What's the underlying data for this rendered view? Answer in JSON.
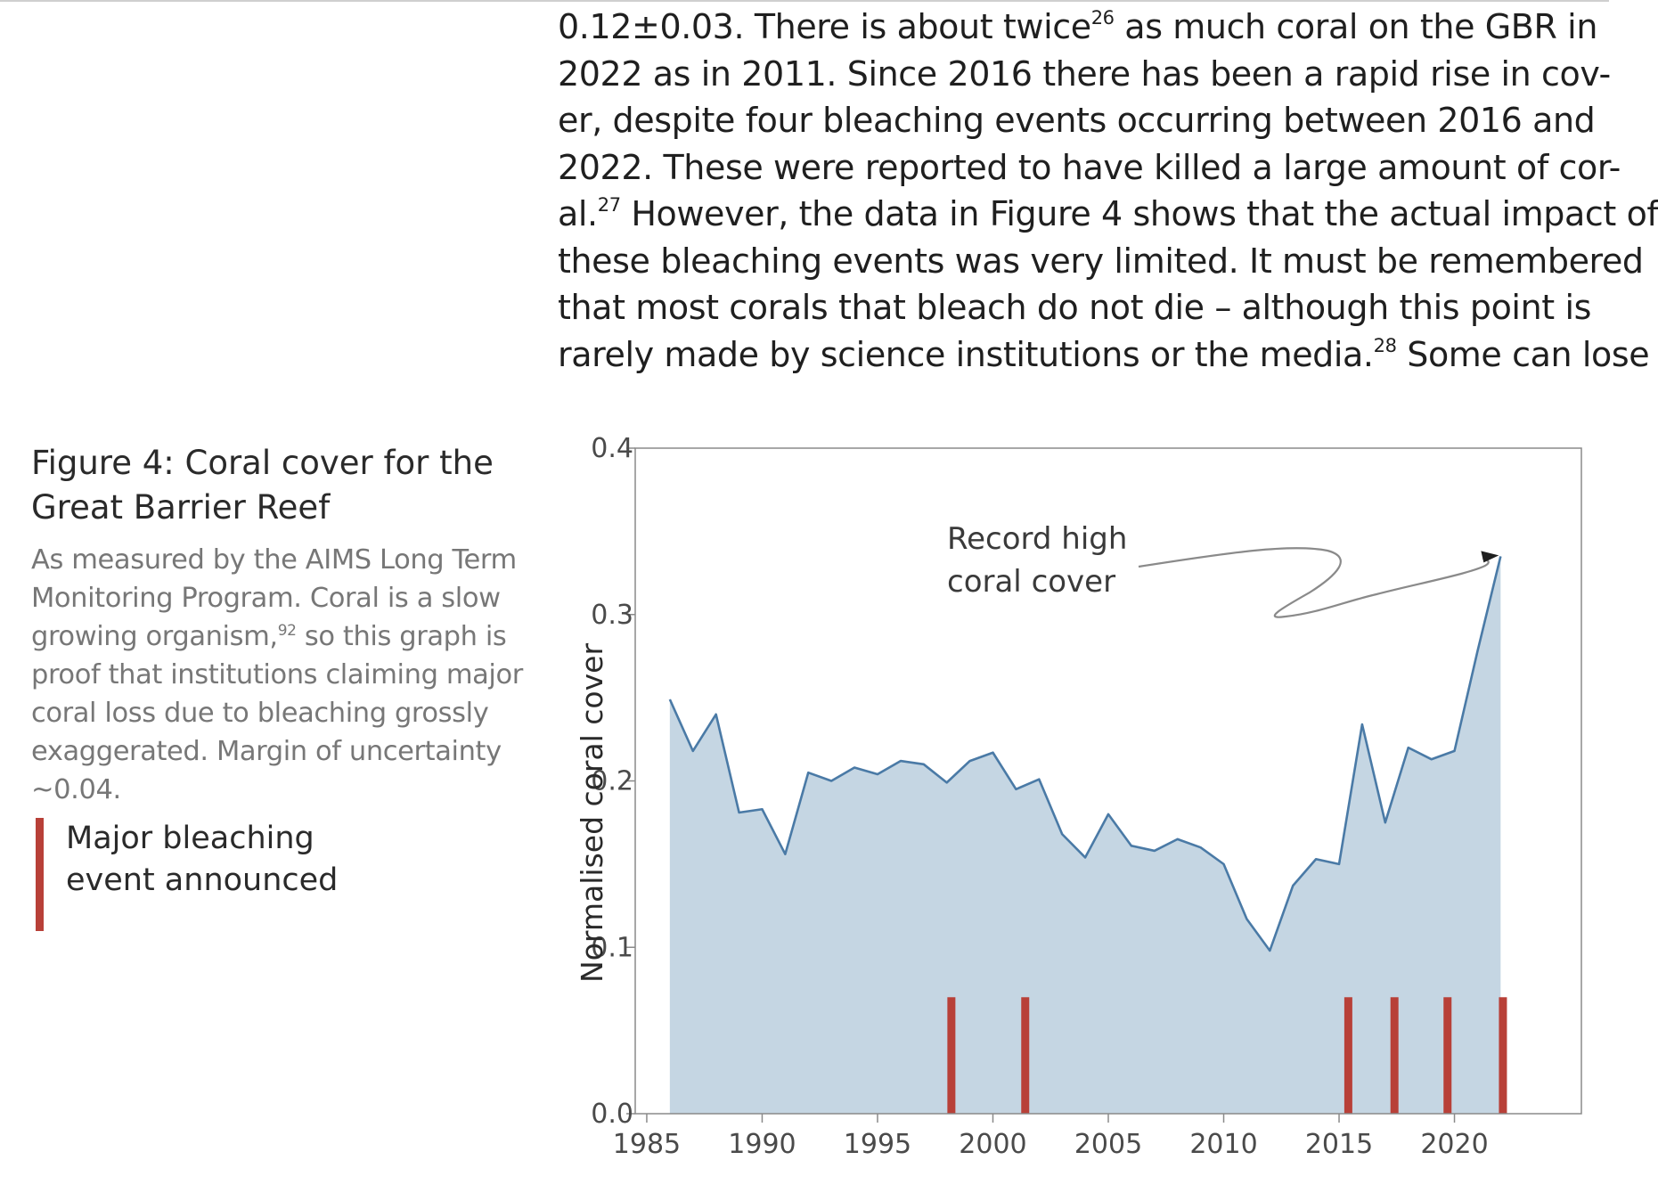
{
  "body_text": {
    "lines": [
      [
        {
          "t": "0.12±0.03. There is about twice"
        },
        {
          "sup": "26"
        },
        {
          "t": " as much coral on the GBR in"
        }
      ],
      [
        {
          "t": "2022 as in 2011. Since 2016 there has been a rapid rise in cov-"
        }
      ],
      [
        {
          "t": "er, despite four bleaching events occurring between 2016 and"
        }
      ],
      [
        {
          "t": "2022. These were reported to have killed a large amount of cor-"
        }
      ],
      [
        {
          "t": "al."
        },
        {
          "sup": "27"
        },
        {
          "t": " However, the data in Figure 4 shows that the actual impact of"
        }
      ],
      [
        {
          "t": "these bleaching events was very limited. It must be remembered"
        }
      ],
      [
        {
          "t": "that most corals that bleach do not die – although this point is"
        }
      ],
      [
        {
          "t": "rarely made by science institutions or the media."
        },
        {
          "sup": "28"
        },
        {
          "t": " Some can lose"
        }
      ]
    ]
  },
  "figure": {
    "title_line1": "Figure 4: Coral cover for the",
    "title_line2": "Great Barrier Reef",
    "caption_lines": [
      [
        {
          "t": "As measured by the AIMS Long Term"
        }
      ],
      [
        {
          "t": "Monitoring Program. Coral is a slow"
        }
      ],
      [
        {
          "t": "growing organism,"
        },
        {
          "sup": "92"
        },
        {
          "t": " so this graph is"
        }
      ],
      [
        {
          "t": "proof that institutions claiming major"
        }
      ],
      [
        {
          "t": "coral loss due to bleaching grossly"
        }
      ],
      [
        {
          "t": "exaggerated. Margin of uncertainty"
        }
      ],
      [
        {
          "t": "~0.04."
        }
      ]
    ],
    "legend": {
      "label_line1": "Major bleaching",
      "label_line2": "event announced",
      "color": "#b84038"
    }
  },
  "chart_data": {
    "type": "area",
    "ylabel": "Normalised coral cover",
    "xlim": [
      1984.5,
      2025.5
    ],
    "ylim": [
      0.0,
      0.4
    ],
    "x_ticks": [
      1985,
      1990,
      1995,
      2000,
      2005,
      2010,
      2015,
      2020
    ],
    "y_ticks": [
      0.0,
      0.1,
      0.2,
      0.3,
      0.4
    ],
    "y_tick_labels": [
      "0.0",
      "0.1",
      "0.2",
      "0.3",
      "0.4"
    ],
    "grid": false,
    "line_color": "#4a7aa6",
    "fill_color": "#c5d6e3",
    "series": [
      {
        "x": [
          1986,
          1987,
          1988,
          1989,
          1990,
          1991,
          1992,
          1993,
          1994,
          1995,
          1996,
          1997,
          1998,
          1999,
          2000,
          2001,
          2002,
          2003,
          2004,
          2005,
          2006,
          2007,
          2008,
          2009,
          2010,
          2011,
          2012,
          2013,
          2014,
          2015,
          2016,
          2017,
          2018,
          2019,
          2020,
          2021,
          2022
        ],
        "y": [
          0.249,
          0.218,
          0.24,
          0.181,
          0.183,
          0.156,
          0.205,
          0.2,
          0.208,
          0.204,
          0.212,
          0.21,
          0.199,
          0.212,
          0.217,
          0.195,
          0.201,
          0.168,
          0.154,
          0.18,
          0.161,
          0.158,
          0.165,
          0.16,
          0.15,
          0.117,
          0.098,
          0.137,
          0.153,
          0.15,
          0.234,
          0.175,
          0.22,
          0.213,
          0.218,
          0.278,
          0.335
        ]
      }
    ],
    "bleaching_events": {
      "label": "Major bleaching event announced",
      "color": "#b84038",
      "years": [
        1998.2,
        2001.4,
        2015.4,
        2017.4,
        2019.7,
        2022.1
      ],
      "marker_height": 0.07
    },
    "annotation": {
      "line1": "Record high",
      "line2": "coral cover",
      "target_x": 2022,
      "target_y": 0.335
    }
  }
}
